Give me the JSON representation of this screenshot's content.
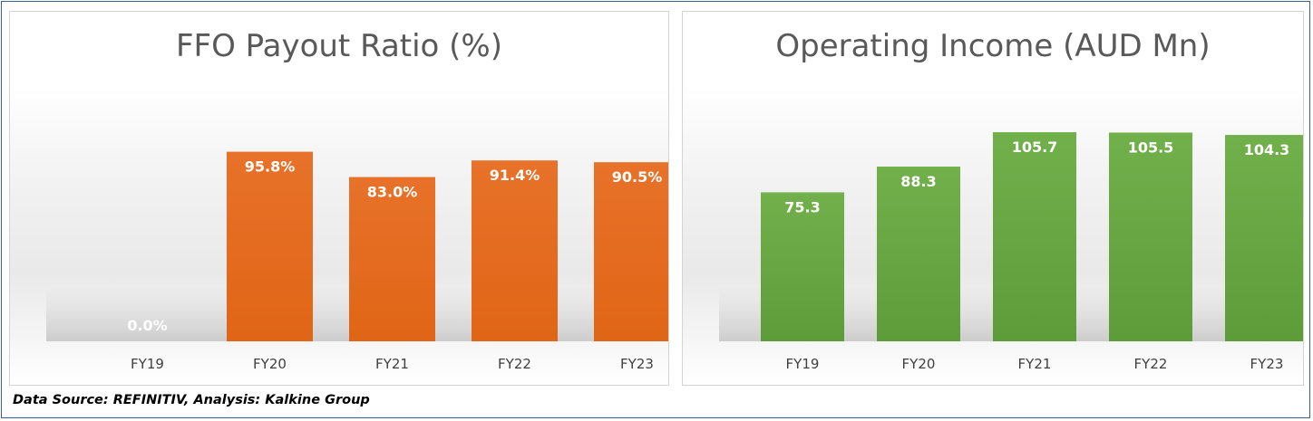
{
  "chart_data": [
    {
      "type": "bar",
      "title": "FFO Payout Ratio (%)",
      "categories": [
        "FY19",
        "FY20",
        "FY21",
        "FY22",
        "FY23"
      ],
      "values": [
        0.0,
        95.8,
        83.0,
        91.4,
        90.5
      ],
      "data_labels": [
        "0.0%",
        "95.8%",
        "83.0%",
        "91.4%",
        "90.5%"
      ],
      "ylim": [
        0,
        100
      ],
      "grid": false,
      "color": "#e8722a",
      "color_dark": "#e06516",
      "label_color": "#ffffff"
    },
    {
      "type": "bar",
      "title": "Operating Income (AUD Mn)",
      "categories": [
        "FY19",
        "FY20",
        "FY21",
        "FY22",
        "FY23"
      ],
      "values": [
        75.3,
        88.3,
        105.7,
        105.5,
        104.3
      ],
      "data_labels": [
        "75.3",
        "88.3",
        "105.7",
        "105.5",
        "104.3"
      ],
      "ylim": [
        0,
        110
      ],
      "grid": false,
      "color": "#71b04b",
      "color_dark": "#5e9c3a",
      "label_color": "#ffffff"
    }
  ],
  "footer": {
    "source_text": "Data Source: REFINITIV, Analysis: Kalkine Group"
  }
}
